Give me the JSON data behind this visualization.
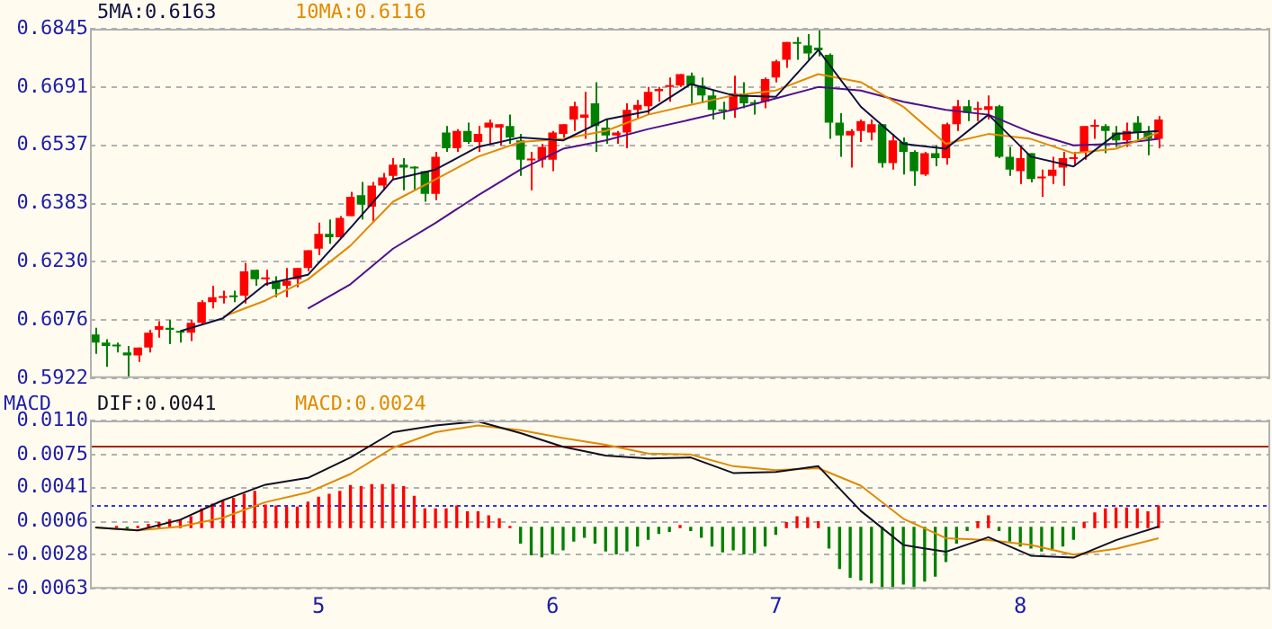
{
  "chart_data": [
    {
      "type": "candlestick",
      "legend": "top left",
      "grid": "y",
      "tick_labels": "y",
      "ylim": [
        0.5922,
        0.6845
      ],
      "yticks": [
        0.5922,
        0.6076,
        {
          "value": 0.623,
          "label": "0.6230"
        },
        0.6383,
        0.6537,
        0.6691,
        0.6845
      ],
      "categories": [
        null,
        null,
        null,
        null,
        null,
        null,
        null,
        null,
        null,
        null,
        null,
        null,
        null,
        null,
        null,
        null,
        null,
        null,
        null,
        null,
        null,
        "5",
        null,
        null,
        null,
        null,
        null,
        null,
        null,
        null,
        null,
        null,
        null,
        null,
        null,
        null,
        null,
        null,
        null,
        null,
        null,
        null,
        null,
        "6",
        null,
        null,
        null,
        null,
        null,
        null,
        null,
        null,
        null,
        null,
        null,
        null,
        null,
        null,
        null,
        null,
        null,
        null,
        null,
        null,
        "7",
        null,
        null,
        null,
        null,
        null,
        null,
        null,
        null,
        null,
        null,
        null,
        null,
        null,
        null,
        null,
        null,
        null,
        null,
        null,
        null,
        null,
        null,
        "8",
        null,
        null,
        null,
        null,
        null,
        null,
        null,
        null,
        null,
        null,
        null,
        null,
        null,
        null,
        null,
        null,
        null,
        null,
        null,
        null,
        null,
        null,
        null
      ],
      "ohlc": [
        [
          0.6037,
          0.6055,
          0.5986,
          0.6016
        ],
        [
          0.6016,
          0.6025,
          0.5952,
          0.6007
        ],
        [
          0.6008,
          0.6016,
          0.599,
          0.6006
        ],
        [
          0.599,
          0.6007,
          0.5922,
          0.5982
        ],
        [
          0.5982,
          0.6003,
          0.5965,
          0.6003
        ],
        [
          0.6003,
          0.605,
          0.599,
          0.6042
        ],
        [
          0.605,
          0.6072,
          0.6029,
          0.6059
        ],
        [
          0.6055,
          0.6076,
          0.6012,
          0.605
        ],
        [
          0.6046,
          0.6046,
          0.6016,
          0.6042
        ],
        [
          0.6042,
          0.6076,
          0.602,
          0.6068
        ],
        [
          0.6068,
          0.6128,
          0.6063,
          0.6123
        ],
        [
          0.6123,
          0.6166,
          0.6106,
          0.6136
        ],
        [
          0.6134,
          0.6153,
          0.6119,
          0.6137
        ],
        [
          0.614,
          0.6153,
          0.6123,
          0.6136
        ],
        [
          0.614,
          0.6226,
          0.6119,
          0.6204
        ],
        [
          0.6208,
          0.6208,
          0.6166,
          0.6183
        ],
        [
          0.6183,
          0.6208,
          0.6166,
          0.6187
        ],
        [
          0.6179,
          0.6191,
          0.6136,
          0.6157
        ],
        [
          0.6166,
          0.6213,
          0.6136,
          0.6179
        ],
        [
          0.6183,
          0.6213,
          0.6162,
          0.6213
        ],
        [
          0.6213,
          0.626,
          0.6204,
          0.626
        ],
        [
          0.6264,
          0.6333,
          0.6247,
          0.6303
        ],
        [
          0.6303,
          0.6341,
          0.6277,
          0.6294
        ],
        [
          0.6294,
          0.635,
          0.629,
          0.6345
        ],
        [
          0.635,
          0.6414,
          0.635,
          0.6401
        ],
        [
          0.6405,
          0.644,
          0.6341,
          0.638
        ],
        [
          0.6375,
          0.644,
          0.6333,
          0.6431
        ],
        [
          0.6431,
          0.6464,
          0.6418,
          0.6452
        ],
        [
          0.6456,
          0.6503,
          0.6448,
          0.6486
        ],
        [
          0.6486,
          0.6503,
          0.6418,
          0.6478
        ],
        [
          0.648,
          0.6482,
          0.6418,
          0.6476
        ],
        [
          0.6469,
          0.6469,
          0.6388,
          0.6409
        ],
        [
          0.6409,
          0.652,
          0.6392,
          0.6507
        ],
        [
          0.6571,
          0.6588,
          0.652,
          0.6529
        ],
        [
          0.6529,
          0.658,
          0.652,
          0.6575
        ],
        [
          0.6575,
          0.6597,
          0.6541,
          0.6546
        ],
        [
          0.6546,
          0.6588,
          0.652,
          0.6567
        ],
        [
          0.6584,
          0.6605,
          0.6541,
          0.6597
        ],
        [
          0.6584,
          0.6593,
          0.6537,
          0.6593
        ],
        [
          0.6588,
          0.6618,
          0.6541,
          0.6558
        ],
        [
          0.655,
          0.6567,
          0.6456,
          0.6499
        ],
        [
          0.6497,
          0.652,
          0.6418,
          0.6501
        ],
        [
          0.6499,
          0.6541,
          0.6478,
          0.6533
        ],
        [
          0.6499,
          0.6575,
          0.6469,
          0.6571
        ],
        [
          0.6567,
          0.6593,
          0.6558,
          0.6593
        ],
        [
          0.6605,
          0.6652,
          0.6575,
          0.664
        ],
        [
          0.661,
          0.6678,
          0.6554,
          0.6618
        ],
        [
          0.6648,
          0.6704,
          0.652,
          0.6588
        ],
        [
          0.6584,
          0.6605,
          0.6541,
          0.6563
        ],
        [
          0.6563,
          0.6575,
          0.6541,
          0.6571
        ],
        [
          0.6571,
          0.6648,
          0.6529,
          0.6631
        ],
        [
          0.6631,
          0.6657,
          0.661,
          0.6644
        ],
        [
          0.664,
          0.6691,
          0.6618,
          0.6678
        ],
        [
          0.668,
          0.6691,
          0.6652,
          0.6686
        ],
        [
          0.6691,
          0.6716,
          0.6652,
          0.6695
        ],
        [
          0.6695,
          0.6725,
          0.6691,
          0.6725
        ],
        [
          0.6721,
          0.6729,
          0.6648,
          0.6695
        ],
        [
          0.6695,
          0.6716,
          0.6648,
          0.6669
        ],
        [
          0.6669,
          0.6682,
          0.6605,
          0.6631
        ],
        [
          0.6629,
          0.6652,
          0.6605,
          0.6627
        ],
        [
          0.6631,
          0.6721,
          0.661,
          0.6674
        ],
        [
          0.6674,
          0.6704,
          0.6635,
          0.6648
        ],
        [
          0.665,
          0.6657,
          0.6618,
          0.6646
        ],
        [
          0.6652,
          0.6716,
          0.6635,
          0.6712
        ],
        [
          0.6716,
          0.6763,
          0.6703,
          0.6759
        ],
        [
          0.6763,
          0.681,
          0.6742,
          0.681
        ],
        [
          0.6807,
          0.6823,
          0.6763,
          0.6805
        ],
        [
          0.6801,
          0.6831,
          0.6763,
          0.678
        ],
        [
          0.6795,
          0.684,
          0.6772,
          0.6788
        ],
        [
          0.6776,
          0.678,
          0.6554,
          0.6597
        ],
        [
          0.6597,
          0.6622,
          0.6507,
          0.6563
        ],
        [
          0.6563,
          0.658,
          0.6478,
          0.6575
        ],
        [
          0.6575,
          0.6605,
          0.6546,
          0.6601
        ],
        [
          0.6571,
          0.6605,
          0.655,
          0.6593
        ],
        [
          0.6593,
          0.6593,
          0.6478,
          0.649
        ],
        [
          0.649,
          0.6567,
          0.6473,
          0.655
        ],
        [
          0.6546,
          0.6558,
          0.646,
          0.652
        ],
        [
          0.652,
          0.6524,
          0.643,
          0.6469
        ],
        [
          0.646,
          0.652,
          0.6456,
          0.6516
        ],
        [
          0.6516,
          0.6537,
          0.6482,
          0.6503
        ],
        [
          0.6503,
          0.6597,
          0.6486,
          0.6593
        ],
        [
          0.6593,
          0.6657,
          0.6575,
          0.664
        ],
        [
          0.664,
          0.6657,
          0.6601,
          0.6623
        ],
        [
          0.6631,
          0.6652,
          0.6601,
          0.6635
        ],
        [
          0.6631,
          0.6669,
          0.6605,
          0.664
        ],
        [
          0.664,
          0.6644,
          0.6503,
          0.6507
        ],
        [
          0.6507,
          0.6533,
          0.6456,
          0.6473
        ],
        [
          0.6469,
          0.6537,
          0.6435,
          0.6503
        ],
        [
          0.6516,
          0.6516,
          0.6439,
          0.6448
        ],
        [
          0.645,
          0.6473,
          0.6401,
          0.6452
        ],
        [
          0.6456,
          0.6507,
          0.6435,
          0.6473
        ],
        [
          0.6478,
          0.652,
          0.643,
          0.6503
        ],
        [
          0.6501,
          0.652,
          0.6482,
          0.6505
        ],
        [
          0.652,
          0.6588,
          0.6499,
          0.6588
        ],
        [
          0.6586,
          0.6605,
          0.6554,
          0.659
        ],
        [
          0.6588,
          0.6593,
          0.6516,
          0.6575
        ],
        [
          0.6571,
          0.6588,
          0.6533,
          0.655
        ],
        [
          0.655,
          0.6597,
          0.6533,
          0.6575
        ],
        [
          0.6597,
          0.6614,
          0.6546,
          0.6571
        ],
        [
          0.6571,
          0.6588,
          0.6511,
          0.6554
        ],
        [
          0.6554,
          0.6614,
          0.6529,
          0.6605
        ],
        null,
        null,
        null,
        null,
        null,
        null,
        null,
        null,
        null,
        null
      ],
      "colors": [
        "#008000",
        "#008000",
        "#008000",
        "#008000",
        "#ff0000",
        "#ff0000",
        "#ff0000",
        "#008000",
        "#008000",
        "#ff0000",
        "#ff0000",
        "#ff0000",
        "#ff0000",
        "#008000",
        "#ff0000",
        "#008000",
        "#ff0000",
        "#008000",
        "#ff0000",
        "#ff0000",
        "#ff0000",
        "#ff0000",
        "#008000",
        "#ff0000",
        "#ff0000",
        "#008000",
        "#ff0000",
        "#ff0000",
        "#ff0000",
        "#008000",
        "#008000",
        "#008000",
        "#ff0000",
        "#008000",
        "#ff0000",
        "#008000",
        "#ff0000",
        "#ff0000",
        "#ff0000",
        "#008000",
        "#008000",
        "#ff0000",
        "#ff0000",
        "#ff0000",
        "#ff0000",
        "#ff0000",
        "#ff0000",
        "#008000",
        "#008000",
        "#ff0000",
        "#ff0000",
        "#ff0000",
        "#ff0000",
        "#ff0000",
        "#ff0000",
        "#ff0000",
        "#008000",
        "#008000",
        "#008000",
        "#008000",
        "#ff0000",
        "#008000",
        "#008000",
        "#ff0000",
        "#ff0000",
        "#ff0000",
        "#008000",
        "#008000",
        "#008000",
        "#008000",
        "#008000",
        "#ff0000",
        "#ff0000",
        "#ff0000",
        "#008000",
        "#ff0000",
        "#008000",
        "#008000",
        "#ff0000",
        "#008000",
        "#ff0000",
        "#ff0000",
        "#008000",
        "#ff0000",
        "#ff0000",
        "#008000",
        "#008000",
        "#ff0000",
        "#008000",
        "#ff0000",
        "#ff0000",
        "#ff0000",
        "#ff0000",
        "#ff0000",
        "#ff0000",
        "#008000",
        "#008000",
        "#ff0000",
        "#008000",
        "#008000",
        "#ff0000",
        null,
        null,
        null,
        null,
        null,
        null,
        null,
        null,
        null,
        null
      ],
      "series": [
        {
          "type": "line",
          "name": "5MA:0.6163",
          "color": "#101040",
          "values": [
            null,
            null,
            null,
            null,
            null,
            null,
            null,
            null,
            0.6046,
            null,
            null,
            null,
            0.608,
            null,
            null,
            null,
            0.617,
            null,
            null,
            null,
            0.6195,
            null,
            null,
            null,
            0.6319,
            null,
            null,
            null,
            0.6447,
            null,
            null,
            null,
            0.6473,
            null,
            null,
            null,
            0.6533,
            null,
            null,
            null,
            0.6558,
            null,
            null,
            null,
            0.655,
            null,
            null,
            null,
            0.6605,
            null,
            null,
            null,
            0.6627,
            null,
            null,
            null,
            0.6699,
            null,
            null,
            null,
            0.6669,
            null,
            null,
            null,
            0.6665,
            null,
            null,
            null,
            0.6789,
            null,
            null,
            null,
            0.6639,
            null,
            null,
            null,
            0.6541,
            null,
            null,
            null,
            0.6528,
            null,
            null,
            null,
            0.6618,
            null,
            null,
            null,
            0.6507,
            null,
            null,
            null,
            0.6481,
            null,
            null,
            null,
            0.6567,
            null,
            null,
            null,
            0.6575,
            null,
            null,
            null,
            null,
            null,
            null,
            null,
            null,
            null,
            null
          ]
        },
        {
          "type": "line",
          "name": "10MA:0.6116",
          "color": "#e08a00",
          "values": [
            null,
            null,
            null,
            null,
            null,
            null,
            null,
            null,
            null,
            null,
            null,
            null,
            0.6084,
            null,
            null,
            null,
            0.6127,
            null,
            null,
            null,
            0.6183,
            null,
            null,
            null,
            0.6272,
            null,
            null,
            null,
            0.6388,
            null,
            null,
            null,
            0.6447,
            null,
            null,
            null,
            0.6507,
            null,
            null,
            null,
            0.6546,
            null,
            null,
            null,
            0.6554,
            null,
            null,
            null,
            0.6575,
            null,
            null,
            null,
            0.6618,
            null,
            null,
            null,
            0.6644,
            null,
            null,
            null,
            0.6669,
            null,
            null,
            null,
            0.6682,
            null,
            null,
            null,
            0.6725,
            null,
            null,
            null,
            0.6704,
            null,
            null,
            null,
            0.6639,
            null,
            null,
            null,
            0.6541,
            null,
            null,
            null,
            0.6567,
            null,
            null,
            null,
            0.6554,
            null,
            null,
            null,
            0.6516,
            null,
            null,
            null,
            0.6528,
            null,
            null,
            null,
            0.6571,
            null,
            null,
            null,
            null,
            null,
            null,
            null,
            null,
            null,
            null
          ]
        },
        {
          "type": "line",
          "color": "#50108a",
          "values": [
            null,
            null,
            null,
            null,
            null,
            null,
            null,
            null,
            null,
            null,
            null,
            null,
            null,
            null,
            null,
            null,
            null,
            null,
            null,
            null,
            0.6106,
            null,
            null,
            null,
            0.617,
            null,
            null,
            null,
            0.6264,
            null,
            null,
            null,
            0.6332,
            null,
            null,
            null,
            0.6405,
            null,
            null,
            null,
            0.6473,
            null,
            null,
            null,
            0.6528,
            null,
            null,
            null,
            0.655,
            null,
            null,
            null,
            0.658,
            null,
            null,
            null,
            0.6605,
            null,
            null,
            null,
            0.6631,
            null,
            null,
            null,
            0.6661,
            null,
            null,
            null,
            0.6691,
            null,
            null,
            null,
            0.6682,
            null,
            null,
            null,
            0.6652,
            null,
            null,
            null,
            0.6631,
            null,
            null,
            null,
            0.6618,
            null,
            null,
            null,
            0.6571,
            null,
            null,
            null,
            0.6537,
            null,
            null,
            null,
            0.6541,
            null,
            null,
            null,
            0.6554,
            null,
            null,
            null,
            null,
            null,
            null,
            null,
            null,
            null,
            null
          ]
        }
      ]
    },
    {
      "type": "bar",
      "legend": "top left",
      "grid": "y",
      "ylabel": "MACD",
      "ylim": [
        -0.0063,
        0.011
      ],
      "yticks": [
        -0.0063,
        -0.0028,
        0.0006,
        0.0041,
        0.0075,
        {
          "value": 0.011,
          "label": "0.0110"
        }
      ],
      "categories": [
        null,
        null,
        null,
        null,
        null,
        null,
        null,
        null,
        null,
        null,
        null,
        null,
        null,
        null,
        null,
        null,
        null,
        null,
        null,
        null,
        null,
        "5",
        null,
        null,
        null,
        null,
        null,
        null,
        null,
        null,
        null,
        null,
        null,
        null,
        null,
        null,
        null,
        null,
        null,
        null,
        null,
        null,
        null,
        "6",
        null,
        null,
        null,
        null,
        null,
        null,
        null,
        null,
        null,
        null,
        null,
        null,
        null,
        null,
        null,
        null,
        null,
        null,
        null,
        null,
        "7",
        null,
        null,
        null,
        null,
        null,
        null,
        null,
        null,
        null,
        null,
        null,
        null,
        null,
        null,
        null,
        null,
        null,
        null,
        null,
        null,
        null,
        null,
        "8",
        null,
        null,
        null,
        null,
        null,
        null,
        null,
        null,
        null,
        null,
        null,
        null,
        null,
        null,
        null,
        null,
        null,
        null,
        null,
        null,
        null,
        null,
        null
      ],
      "ref_lines": [
        {
          "axis": "y",
          "value": 0.0085,
          "color": "#a82400",
          "line_style": "solid"
        },
        {
          "axis": "y",
          "value": 0.0024,
          "color": "#3434e0",
          "line_style": "dotted"
        }
      ],
      "series": [
        {
          "type": "bar",
          "color": "#ff0000",
          "values": [
            null,
            null,
            0.0001,
            null,
            0.0001,
            0.0003,
            0.0005,
            0.0008,
            0.0008,
            0.0011,
            0.0019,
            0.0024,
            0.0027,
            0.003,
            0.0034,
            0.0037,
            0.0023,
            0.0022,
            0.0021,
            0.0021,
            0.0026,
            0.0031,
            0.0034,
            0.0037,
            0.0043,
            0.0042,
            0.0044,
            0.0044,
            0.0044,
            0.0042,
            0.0032,
            0.0019,
            0.0019,
            0.0019,
            0.0022,
            0.0016,
            0.0016,
            0.0012,
            0.0009,
            0.0001,
            null,
            null,
            null,
            null,
            null,
            null,
            null,
            null,
            null,
            null,
            null,
            null,
            null,
            null,
            null,
            0.0002,
            null,
            null,
            null,
            null,
            null,
            null,
            null,
            null,
            null,
            0.0005,
            0.0011,
            0.001,
            0.0006,
            null,
            null,
            null,
            null,
            null,
            null,
            null,
            null,
            null,
            null,
            null,
            null,
            null,
            null,
            0.0006,
            0.0012,
            null,
            null,
            null,
            null,
            null,
            null,
            null,
            null,
            0.0005,
            0.0015,
            0.0019,
            0.002,
            0.002,
            0.0019,
            0.0016,
            0.0022,
            null,
            null,
            null,
            null,
            null,
            null,
            null,
            null,
            null,
            null
          ]
        },
        {
          "type": "bar",
          "color": "#008000",
          "values": [
            null,
            null,
            null,
            -0.0001,
            null,
            null,
            null,
            null,
            null,
            null,
            null,
            null,
            null,
            null,
            null,
            null,
            null,
            null,
            null,
            null,
            null,
            null,
            null,
            null,
            null,
            null,
            null,
            null,
            null,
            null,
            null,
            null,
            null,
            null,
            null,
            null,
            null,
            null,
            null,
            null,
            -0.0016,
            -0.0028,
            -0.003,
            -0.0027,
            -0.0023,
            -0.0014,
            -0.001,
            -0.0016,
            -0.0024,
            -0.0027,
            -0.0024,
            -0.0019,
            -0.0012,
            -0.0006,
            -0.0004,
            null,
            -0.0003,
            -0.001,
            -0.0019,
            -0.0025,
            -0.0023,
            -0.0027,
            -0.0026,
            -0.0019,
            -0.0007,
            null,
            null,
            null,
            null,
            -0.0021,
            -0.0042,
            -0.0051,
            -0.0054,
            -0.0057,
            -0.0063,
            -0.0061,
            -0.0058,
            -0.0063,
            -0.0055,
            -0.005,
            -0.0035,
            -0.0016,
            -0.0003,
            null,
            null,
            -0.0003,
            -0.0014,
            -0.0019,
            -0.0021,
            -0.0024,
            -0.0023,
            -0.0019,
            -0.0012,
            null,
            null,
            null,
            null,
            null,
            null,
            null,
            null,
            null,
            null,
            null,
            null,
            null,
            null,
            null,
            null,
            null,
            null
          ]
        },
        {
          "type": "line",
          "name": "DIF:0.0041",
          "color": "#101020",
          "values": [
            0,
            null,
            null,
            null,
            -0.0003,
            null,
            null,
            null,
            0.0008,
            null,
            null,
            null,
            0.0028,
            null,
            null,
            null,
            0.0044,
            null,
            null,
            null,
            0.0051,
            null,
            null,
            null,
            0.0072,
            null,
            null,
            null,
            0.0098,
            null,
            null,
            null,
            0.0105,
            null,
            null,
            null,
            0.0109,
            null,
            null,
            null,
            0.0097,
            null,
            null,
            null,
            0.0083,
            null,
            null,
            null,
            0.0074,
            null,
            null,
            null,
            0.0071,
            null,
            null,
            null,
            0.0072,
            null,
            null,
            null,
            0.0056,
            null,
            null,
            null,
            0.0057,
            null,
            null,
            null,
            0.0063,
            null,
            null,
            null,
            0.0017,
            null,
            null,
            null,
            -0.0018,
            null,
            null,
            null,
            -0.0025,
            null,
            null,
            null,
            -0.001,
            null,
            null,
            null,
            -0.0029,
            null,
            null,
            null,
            -0.0031,
            null,
            null,
            null,
            -0.0013,
            null,
            null,
            null,
            0.0001,
            null,
            null,
            null,
            null,
            null,
            null,
            null,
            null,
            null,
            null
          ]
        },
        {
          "type": "line",
          "name": "MACD:0.0024",
          "color": "#e08a00",
          "values": [
            0,
            null,
            null,
            null,
            -0.0003,
            null,
            null,
            null,
            0.0001,
            null,
            null,
            null,
            0.001,
            null,
            null,
            null,
            0.0026,
            null,
            null,
            null,
            0.0036,
            null,
            null,
            null,
            0.0055,
            null,
            null,
            null,
            0.0082,
            null,
            null,
            null,
            0.0098,
            null,
            null,
            null,
            0.0105,
            null,
            null,
            null,
            0.01,
            null,
            null,
            null,
            0.0092,
            null,
            null,
            null,
            0.0085,
            null,
            null,
            null,
            0.0076,
            null,
            null,
            null,
            0.0075,
            null,
            null,
            null,
            0.0063,
            null,
            null,
            null,
            0.0059,
            null,
            null,
            null,
            0.0061,
            null,
            null,
            null,
            0.0043,
            null,
            null,
            null,
            0.0009,
            null,
            null,
            null,
            -0.0011,
            null,
            null,
            null,
            -0.0013,
            null,
            null,
            null,
            -0.0018,
            null,
            null,
            null,
            -0.0028,
            null,
            null,
            null,
            -0.0022,
            null,
            null,
            null,
            -0.0011,
            null,
            null,
            null,
            null,
            null,
            null,
            null,
            null,
            null,
            null
          ]
        }
      ]
    }
  ]
}
